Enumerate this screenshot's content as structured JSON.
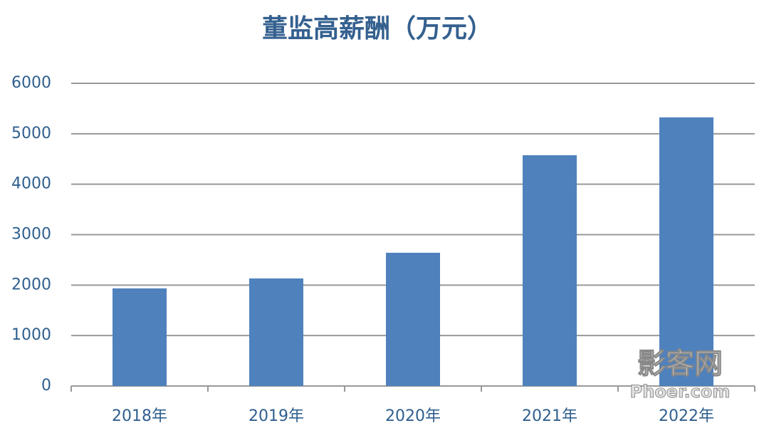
{
  "chart_data": {
    "type": "bar",
    "title": "董监高薪酬（万元）",
    "categories": [
      "2018年",
      "2019年",
      "2020年",
      "2021年",
      "2022年"
    ],
    "values": [
      1935,
      2132,
      2641,
      4575,
      5325
    ],
    "color": "#4f81bd",
    "ylim": [
      0,
      6000
    ],
    "yticks": [
      0,
      1000,
      2000,
      3000,
      4000,
      5000,
      6000
    ],
    "grid": true,
    "watermark": [
      "影客网",
      "Phoer.com"
    ]
  }
}
